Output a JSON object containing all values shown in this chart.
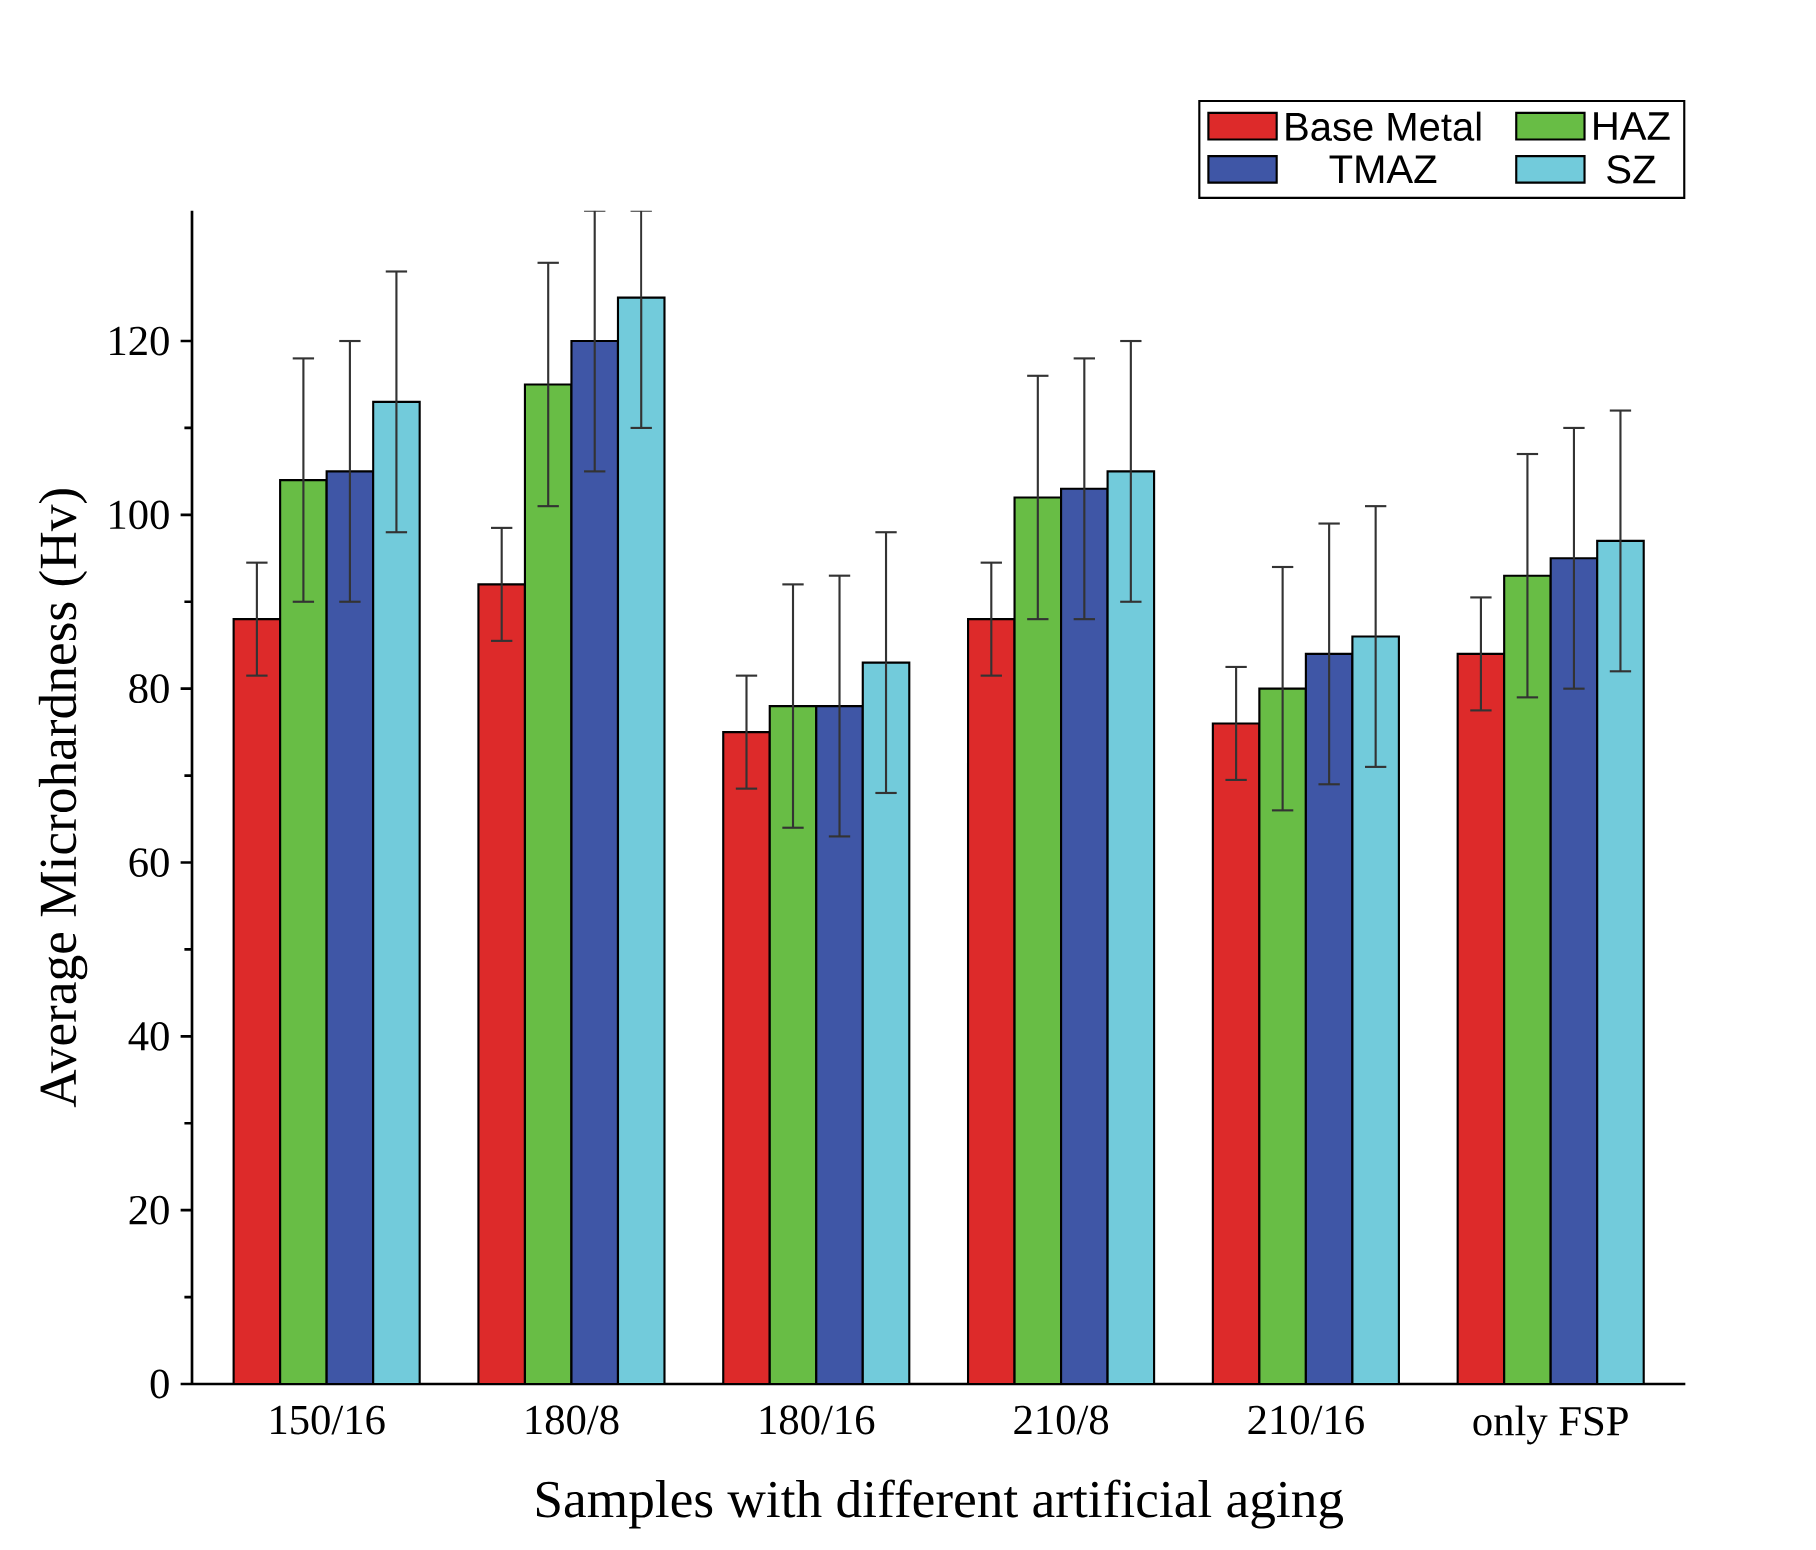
{
  "chart_data": {
    "type": "bar",
    "xlabel": "Samples with different artificial aging",
    "ylabel": "Average Microhardness (Hv)",
    "categories": [
      "150/16",
      "180/8",
      "180/16",
      "210/8",
      "210/16",
      "only FSP"
    ],
    "series": [
      {
        "name": "Base Metal",
        "color": "#dd2a2a",
        "values": [
          88,
          92,
          75,
          88,
          76,
          84
        ],
        "errors": [
          6.5,
          6.5,
          6.5,
          6.5,
          6.5,
          6.5
        ]
      },
      {
        "name": "HAZ",
        "color": "#68bd45",
        "values": [
          104,
          115,
          78,
          102,
          80,
          93
        ],
        "errors": [
          14,
          14,
          14,
          14,
          14,
          14
        ]
      },
      {
        "name": "TMAZ",
        "color": "#3f56a6",
        "values": [
          105,
          120,
          78,
          103,
          84,
          95
        ],
        "errors": [
          15,
          15,
          15,
          15,
          15,
          15
        ]
      },
      {
        "name": "SZ",
        "color": "#72cbdb",
        "values": [
          113,
          125,
          83,
          105,
          86,
          97
        ],
        "errors": [
          15,
          [
            110,
            135
          ],
          15,
          15,
          15,
          15
        ]
      }
    ],
    "ylim": [
      0,
      135
    ],
    "yticks": [
      0,
      20,
      40,
      60,
      80,
      100,
      120
    ],
    "grid": false,
    "legend": "top right"
  }
}
